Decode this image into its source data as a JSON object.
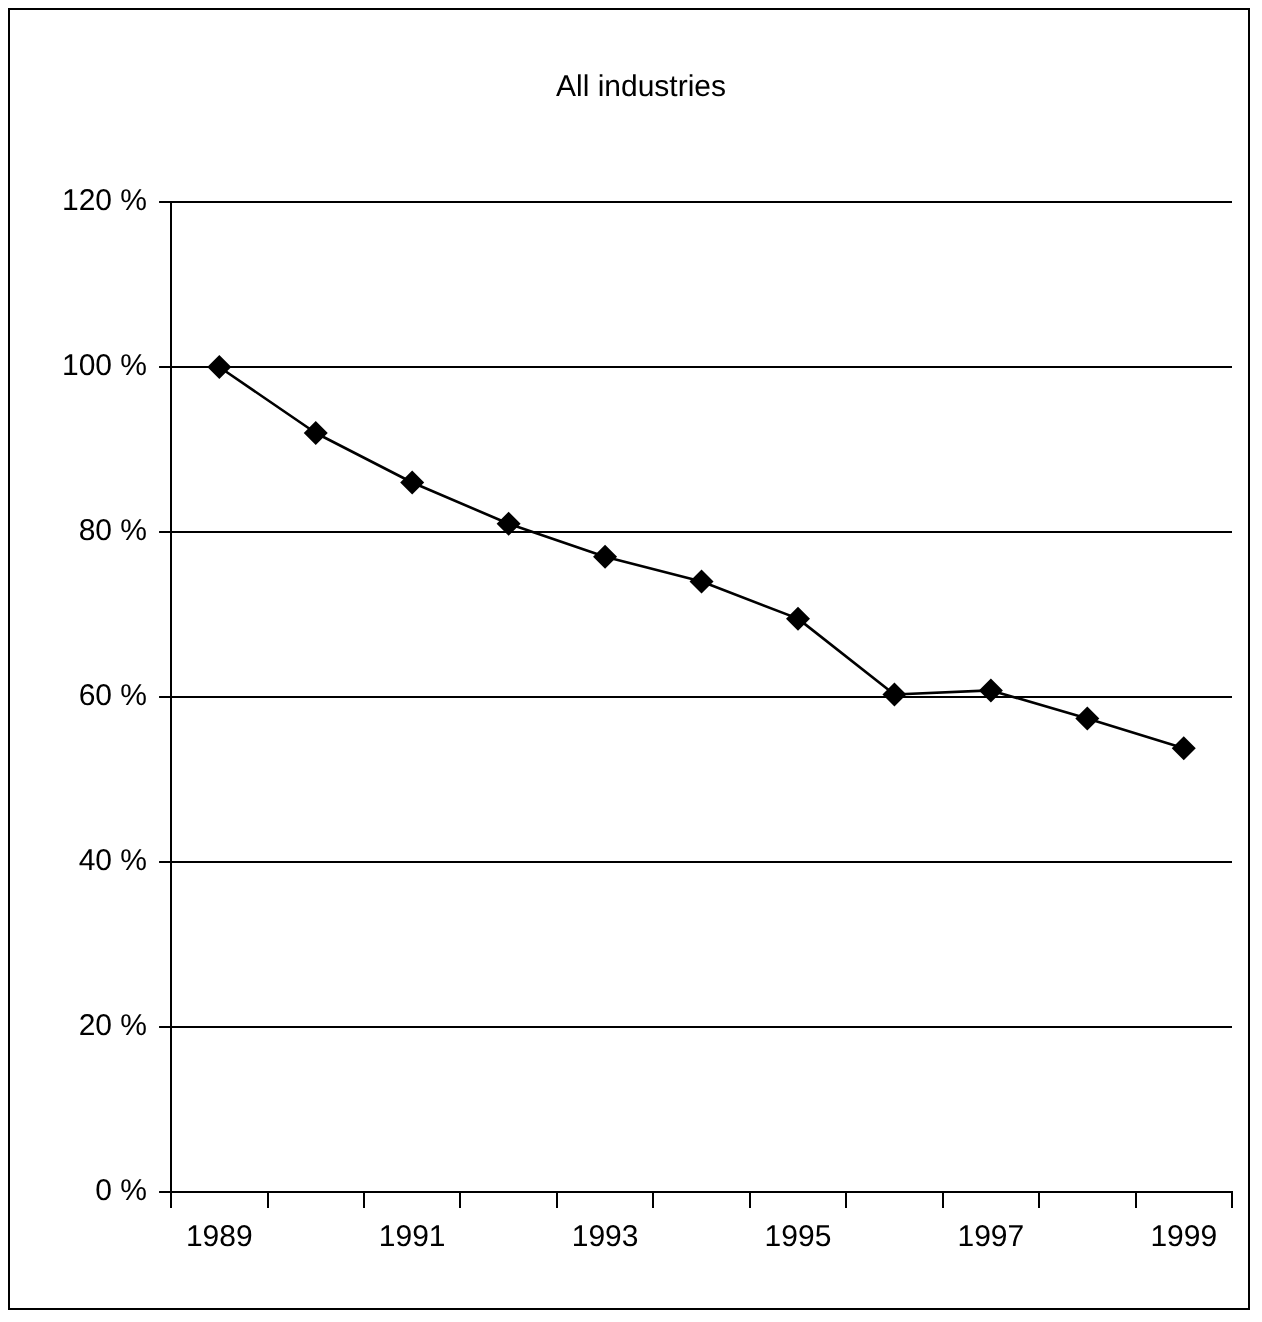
{
  "chart_data": {
    "type": "line",
    "title": "All industries",
    "categories": [
      "1989",
      null,
      "1991",
      null,
      "1993",
      null,
      "1995",
      null,
      "1997",
      null,
      "1999"
    ],
    "series": [
      {
        "color": "#000000",
        "values": [
          100,
          92,
          86,
          81,
          77,
          74,
          69.5,
          60.3,
          60.8,
          57.4,
          53.8
        ]
      }
    ],
    "ylim": [
      0,
      120
    ],
    "yticks": [
      {
        "value": 0,
        "label": "0 %"
      },
      {
        "value": 20,
        "label": "20 %"
      },
      {
        "value": 40,
        "label": "40 %"
      },
      {
        "value": 60,
        "label": "60 %"
      },
      {
        "value": 80,
        "label": "80 %"
      },
      {
        "value": 100,
        "label": "100 %"
      },
      {
        "value": 120,
        "label": "120 %"
      }
    ],
    "grid": "y",
    "legend": false,
    "marker": "diamond",
    "line_style": "solid"
  }
}
